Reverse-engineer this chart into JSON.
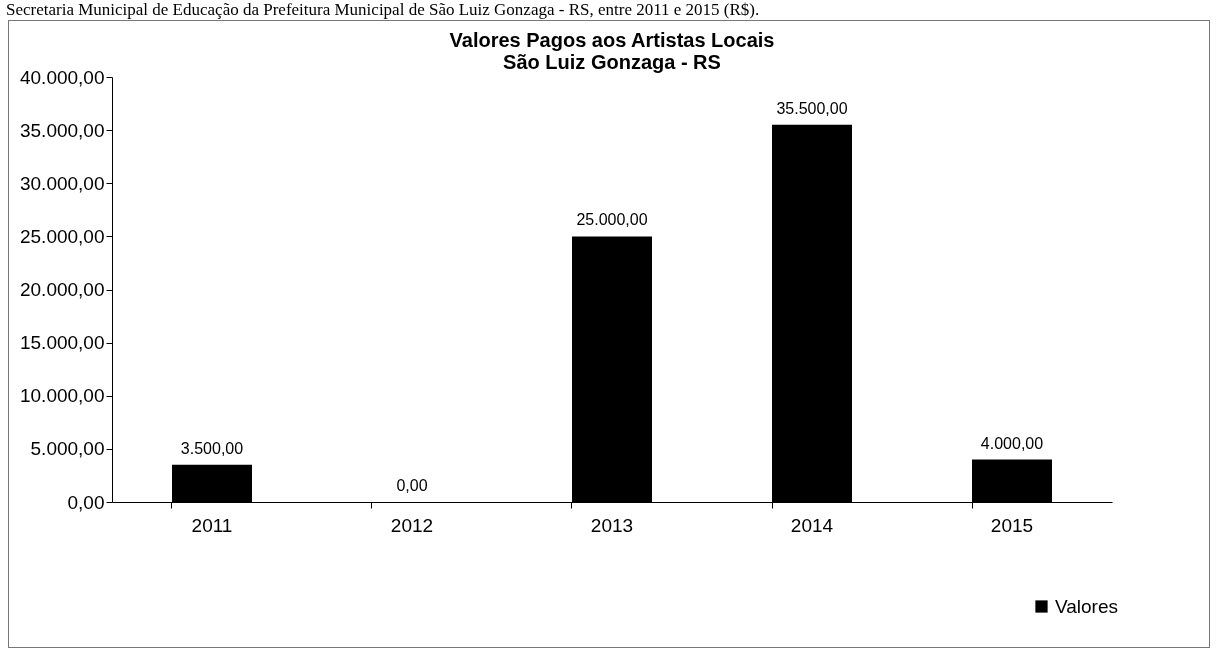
{
  "chart_data": {
    "type": "bar",
    "title": [
      "Valores Pagos aos Artistas Locais",
      "São Luiz Gonzaga - RS"
    ],
    "annotations": [
      "Secretaria Municipal de Educação da Prefeitura Municipal de São Luiz Gonzaga - RS, entre 2011 e 2015 (R$)."
    ],
    "categories": [
      "2011",
      "2012",
      "2013",
      "2014",
      "2015"
    ],
    "series": [
      {
        "name": "Valores",
        "color": "#000000",
        "values": [
          3500,
          0,
          25000,
          35500,
          4000
        ],
        "value_labels": [
          "3.500,00",
          "0,00",
          "25.000,00",
          "35.500,00",
          "4.000,00"
        ]
      }
    ],
    "ylim": [
      0,
      40000
    ],
    "yticks": [
      {
        "value": 0,
        "label": "0,00"
      },
      {
        "value": 5000,
        "label": "5.000,00"
      },
      {
        "value": 10000,
        "label": "10.000,00"
      },
      {
        "value": 15000,
        "label": "15.000,00"
      },
      {
        "value": 20000,
        "label": "20.000,00"
      },
      {
        "value": 25000,
        "label": "25.000,00"
      },
      {
        "value": 30000,
        "label": "30.000,00"
      },
      {
        "value": 35000,
        "label": "35.000,00"
      },
      {
        "value": 40000,
        "label": "40.000,00"
      }
    ],
    "grid": false,
    "legend": "bottom right"
  }
}
